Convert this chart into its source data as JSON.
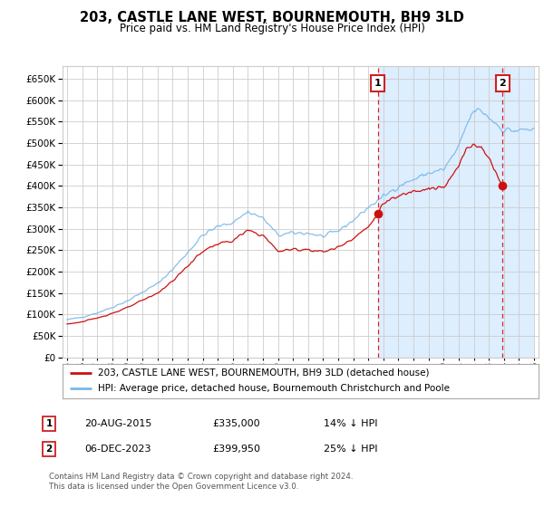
{
  "title": "203, CASTLE LANE WEST, BOURNEMOUTH, BH9 3LD",
  "subtitle": "Price paid vs. HM Land Registry's House Price Index (HPI)",
  "legend_line1": "203, CASTLE LANE WEST, BOURNEMOUTH, BH9 3LD (detached house)",
  "legend_line2": "HPI: Average price, detached house, Bournemouth Christchurch and Poole",
  "footnote1": "Contains HM Land Registry data © Crown copyright and database right 2024.",
  "footnote2": "This data is licensed under the Open Government Licence v3.0.",
  "transaction1_label": "1",
  "transaction1_date": "20-AUG-2015",
  "transaction1_price": "£335,000",
  "transaction1_hpi": "14% ↓ HPI",
  "transaction2_label": "2",
  "transaction2_date": "06-DEC-2023",
  "transaction2_price": "£399,950",
  "transaction2_hpi": "25% ↓ HPI",
  "hpi_color": "#7ab8e8",
  "price_color": "#cc1111",
  "transaction1_x": 2015.63,
  "transaction2_x": 2023.92,
  "transaction1_y": 335000,
  "transaction2_y": 399950,
  "ylim_min": 0,
  "ylim_max": 680000,
  "xlim_min": 1994.7,
  "xlim_max": 2026.3,
  "yticks": [
    0,
    50000,
    100000,
    150000,
    200000,
    250000,
    300000,
    350000,
    400000,
    450000,
    500000,
    550000,
    600000,
    650000
  ],
  "background_color": "#ffffff",
  "grid_color": "#cccccc",
  "highlight_color": "#ddeeff"
}
